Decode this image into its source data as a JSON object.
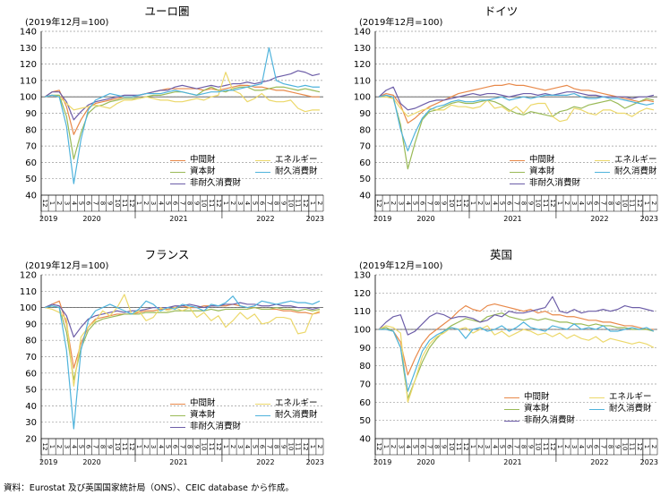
{
  "footer": {
    "source": "資料：Eurostat 及び英国国家統計局（ONS）、CEIC database から作成。"
  },
  "series_names": [
    "中間財",
    "資本財",
    "非耐久消費財",
    "エネルギー",
    "耐久消費財"
  ],
  "series_colors": {
    "中間財": "#e8894a",
    "資本財": "#9aba57",
    "非耐久消費財": "#6d5ea8",
    "エネルギー": "#ecd86a",
    "耐久消費財": "#4fb3dc"
  },
  "x_ticks": [
    "12",
    "1",
    "2",
    "3",
    "4",
    "5",
    "6",
    "7",
    "8",
    "9",
    "10",
    "11",
    "12",
    "1",
    "2",
    "3",
    "4",
    "5",
    "6",
    "7",
    "8",
    "9",
    "10",
    "11",
    "12",
    "1",
    "2",
    "3",
    "4",
    "5",
    "6",
    "7",
    "8",
    "9",
    "10",
    "11",
    "12",
    "1",
    "2"
  ],
  "year_labels": [
    {
      "label": "2019",
      "index": 0
    },
    {
      "label": "2020",
      "index": 6.5
    },
    {
      "label": "2021",
      "index": 18.5
    },
    {
      "label": "2022",
      "index": 30.5
    },
    {
      "label": "2023",
      "index": 37.5
    }
  ],
  "chart_data": [
    {
      "type": "line",
      "title": "ユーロ圏",
      "unit_label": "(2019年12月=100)",
      "ylim": [
        40,
        140
      ],
      "yticks": [
        40,
        50,
        60,
        70,
        80,
        90,
        100,
        110,
        120,
        130,
        140
      ],
      "x": [
        "2019-12",
        "2020-01",
        "2020-02",
        "2020-03",
        "2020-04",
        "2020-05",
        "2020-06",
        "2020-07",
        "2020-08",
        "2020-09",
        "2020-10",
        "2020-11",
        "2020-12",
        "2021-01",
        "2021-02",
        "2021-03",
        "2021-04",
        "2021-05",
        "2021-06",
        "2021-07",
        "2021-08",
        "2021-09",
        "2021-10",
        "2021-11",
        "2021-12",
        "2022-01",
        "2022-02",
        "2022-03",
        "2022-04",
        "2022-05",
        "2022-06",
        "2022-07",
        "2022-08",
        "2022-09",
        "2022-10",
        "2022-11",
        "2022-12",
        "2023-01",
        "2023-02"
      ],
      "grid": true,
      "series": [
        {
          "name": "中間財",
          "values": [
            100,
            103,
            104,
            94,
            77,
            86,
            93,
            96,
            97,
            98,
            99,
            100,
            100,
            101,
            102,
            103,
            104,
            105,
            105,
            105,
            105,
            105,
            104,
            105,
            104,
            105,
            106,
            107,
            107,
            106,
            106,
            105,
            104,
            104,
            103,
            102,
            101,
            100,
            100
          ]
        },
        {
          "name": "資本財",
          "values": [
            100,
            101,
            101,
            88,
            62,
            78,
            90,
            94,
            95,
            97,
            98,
            99,
            99,
            99,
            100,
            101,
            101,
            102,
            103,
            103,
            102,
            101,
            104,
            106,
            104,
            103,
            105,
            106,
            106,
            104,
            104,
            105,
            106,
            106,
            105,
            104,
            105,
            104,
            103
          ]
        },
        {
          "name": "非耐久消費財",
          "values": [
            100,
            103,
            103,
            97,
            86,
            91,
            95,
            97,
            98,
            99,
            100,
            101,
            101,
            101,
            102,
            103,
            104,
            104,
            106,
            107,
            106,
            105,
            106,
            107,
            106,
            107,
            108,
            108,
            109,
            108,
            109,
            110,
            112,
            113,
            114,
            116,
            115,
            113,
            114
          ]
        },
        {
          "name": "エネルギー",
          "values": [
            100,
            101,
            100,
            96,
            92,
            93,
            94,
            95,
            94,
            93,
            96,
            98,
            98,
            99,
            100,
            99,
            98,
            98,
            97,
            97,
            98,
            99,
            98,
            100,
            101,
            115,
            104,
            102,
            97,
            99,
            102,
            98,
            97,
            97,
            98,
            93,
            91,
            92,
            92
          ]
        },
        {
          "name": "耐久消費財",
          "values": [
            100,
            101,
            100,
            82,
            47,
            74,
            92,
            98,
            100,
            102,
            101,
            100,
            100,
            101,
            102,
            102,
            102,
            103,
            104,
            103,
            102,
            101,
            102,
            103,
            103,
            104,
            104,
            105,
            106,
            107,
            108,
            130,
            110,
            108,
            107,
            106,
            107,
            106,
            106
          ]
        }
      ]
    },
    {
      "type": "line",
      "title": "ドイツ",
      "unit_label": "(2019年12月=100)",
      "ylim": [
        40,
        140
      ],
      "yticks": [
        40,
        50,
        60,
        70,
        80,
        90,
        100,
        110,
        120,
        130,
        140
      ],
      "x": [
        "2019-12",
        "2020-01",
        "2020-02",
        "2020-03",
        "2020-04",
        "2020-05",
        "2020-06",
        "2020-07",
        "2020-08",
        "2020-09",
        "2020-10",
        "2020-11",
        "2020-12",
        "2021-01",
        "2021-02",
        "2021-03",
        "2021-04",
        "2021-05",
        "2021-06",
        "2021-07",
        "2021-08",
        "2021-09",
        "2021-10",
        "2021-11",
        "2021-12",
        "2022-01",
        "2022-02",
        "2022-03",
        "2022-04",
        "2022-05",
        "2022-06",
        "2022-07",
        "2022-08",
        "2022-09",
        "2022-10",
        "2022-11",
        "2022-12",
        "2023-01",
        "2023-02"
      ],
      "grid": true,
      "series": [
        {
          "name": "中間財",
          "values": [
            100,
            102,
            101,
            95,
            84,
            87,
            91,
            94,
            96,
            98,
            100,
            102,
            103,
            104,
            105,
            106,
            107,
            107,
            108,
            107,
            107,
            106,
            105,
            104,
            105,
            106,
            107,
            105,
            104,
            104,
            103,
            102,
            101,
            100,
            99,
            98,
            97,
            98,
            97
          ]
        },
        {
          "name": "資本財",
          "values": [
            100,
            100,
            99,
            83,
            56,
            72,
            86,
            91,
            92,
            94,
            96,
            97,
            96,
            96,
            97,
            98,
            97,
            95,
            92,
            90,
            89,
            91,
            90,
            89,
            88,
            91,
            92,
            94,
            93,
            95,
            96,
            97,
            98,
            96,
            93,
            95,
            97,
            99,
            98
          ]
        },
        {
          "name": "非耐久消費財",
          "values": [
            100,
            104,
            106,
            96,
            92,
            93,
            95,
            97,
            98,
            98,
            99,
            100,
            101,
            102,
            101,
            102,
            102,
            101,
            100,
            101,
            102,
            102,
            101,
            102,
            101,
            102,
            103,
            103,
            102,
            101,
            101,
            100,
            100,
            100,
            100,
            99,
            100,
            100,
            101
          ]
        },
        {
          "name": "エネルギー",
          "values": [
            100,
            100,
            99,
            93,
            88,
            90,
            92,
            93,
            92,
            92,
            95,
            94,
            94,
            93,
            94,
            98,
            93,
            94,
            91,
            94,
            90,
            95,
            96,
            96,
            88,
            85,
            86,
            93,
            92,
            90,
            89,
            92,
            92,
            90,
            90,
            88,
            91,
            93,
            92
          ]
        },
        {
          "name": "耐久消費財",
          "values": [
            100,
            101,
            100,
            80,
            67,
            78,
            87,
            92,
            94,
            95,
            97,
            98,
            97,
            97,
            98,
            98,
            99,
            100,
            98,
            99,
            100,
            99,
            100,
            101,
            101,
            101,
            101,
            102,
            100,
            99,
            99,
            100,
            99,
            99,
            98,
            97,
            96,
            95,
            96
          ]
        }
      ]
    },
    {
      "type": "line",
      "title": "フランス",
      "unit_label": "(2019年12月=100)",
      "ylim": [
        20,
        120
      ],
      "yticks": [
        20,
        30,
        40,
        50,
        60,
        70,
        80,
        90,
        100,
        110,
        120
      ],
      "x": [
        "2019-12",
        "2020-01",
        "2020-02",
        "2020-03",
        "2020-04",
        "2020-05",
        "2020-06",
        "2020-07",
        "2020-08",
        "2020-09",
        "2020-10",
        "2020-11",
        "2020-12",
        "2021-01",
        "2021-02",
        "2021-03",
        "2021-04",
        "2021-05",
        "2021-06",
        "2021-07",
        "2021-08",
        "2021-09",
        "2021-10",
        "2021-11",
        "2021-12",
        "2022-01",
        "2022-02",
        "2022-03",
        "2022-04",
        "2022-05",
        "2022-06",
        "2022-07",
        "2022-08",
        "2022-09",
        "2022-10",
        "2022-11",
        "2022-12",
        "2023-01",
        "2023-02"
      ],
      "grid": true,
      "series": [
        {
          "name": "中間財",
          "values": [
            100,
            102,
            104,
            90,
            63,
            78,
            88,
            93,
            94,
            95,
            96,
            96,
            96,
            97,
            98,
            98,
            99,
            99,
            100,
            101,
            100,
            100,
            101,
            101,
            101,
            101,
            102,
            101,
            100,
            100,
            99,
            99,
            99,
            98,
            98,
            97,
            97,
            96,
            97
          ]
        },
        {
          "name": "資本財",
          "values": [
            100,
            101,
            100,
            85,
            56,
            75,
            86,
            91,
            93,
            94,
            95,
            96,
            96,
            96,
            97,
            97,
            97,
            97,
            98,
            98,
            98,
            98,
            98,
            99,
            98,
            99,
            99,
            99,
            99,
            100,
            99,
            99,
            100,
            99,
            99,
            98,
            99,
            98,
            99
          ]
        },
        {
          "name": "非耐久消費財",
          "values": [
            100,
            102,
            101,
            95,
            82,
            88,
            93,
            95,
            96,
            97,
            98,
            97,
            98,
            98,
            99,
            100,
            100,
            100,
            101,
            101,
            102,
            101,
            100,
            101,
            101,
            102,
            102,
            103,
            102,
            102,
            101,
            101,
            102,
            101,
            101,
            100,
            100,
            99,
            100
          ]
        },
        {
          "name": "エネルギー",
          "values": [
            100,
            99,
            97,
            93,
            52,
            82,
            88,
            92,
            98,
            95,
            100,
            108,
            96,
            98,
            92,
            94,
            100,
            98,
            100,
            98,
            100,
            94,
            97,
            92,
            95,
            88,
            92,
            97,
            93,
            96,
            90,
            91,
            94,
            94,
            93,
            84,
            85,
            96,
            98
          ]
        },
        {
          "name": "耐久消費財",
          "values": [
            100,
            101,
            100,
            74,
            26,
            74,
            92,
            98,
            100,
            102,
            100,
            98,
            96,
            99,
            104,
            102,
            98,
            100,
            99,
            102,
            101,
            100,
            98,
            102,
            101,
            103,
            107,
            101,
            100,
            101,
            104,
            103,
            102,
            103,
            104,
            103,
            103,
            102,
            104
          ]
        }
      ]
    },
    {
      "type": "line",
      "title": "英国",
      "unit_label": "(2019年12月=100)",
      "ylim": [
        40,
        130
      ],
      "yticks": [
        40,
        50,
        60,
        70,
        80,
        90,
        100,
        110,
        120,
        130
      ],
      "x": [
        "2019-12",
        "2020-01",
        "2020-02",
        "2020-03",
        "2020-04",
        "2020-05",
        "2020-06",
        "2020-07",
        "2020-08",
        "2020-09",
        "2020-10",
        "2020-11",
        "2020-12",
        "2021-01",
        "2021-02",
        "2021-03",
        "2021-04",
        "2021-05",
        "2021-06",
        "2021-07",
        "2021-08",
        "2021-09",
        "2021-10",
        "2021-11",
        "2021-12",
        "2022-01",
        "2022-02",
        "2022-03",
        "2022-04",
        "2022-05",
        "2022-06",
        "2022-07",
        "2022-08",
        "2022-09",
        "2022-10",
        "2022-11",
        "2022-12",
        "2023-01",
        "2023-02"
      ],
      "grid": true,
      "series": [
        {
          "name": "中間財",
          "values": [
            100,
            100,
            99,
            93,
            75,
            84,
            92,
            97,
            100,
            103,
            106,
            110,
            113,
            111,
            110,
            113,
            114,
            113,
            112,
            111,
            110,
            111,
            109,
            110,
            108,
            108,
            107,
            107,
            106,
            105,
            105,
            104,
            104,
            103,
            102,
            102,
            101,
            100,
            100
          ]
        },
        {
          "name": "資本財",
          "values": [
            100,
            101,
            99,
            90,
            62,
            72,
            82,
            90,
            95,
            99,
            102,
            104,
            106,
            105,
            104,
            107,
            108,
            109,
            107,
            106,
            105,
            106,
            105,
            106,
            105,
            104,
            104,
            103,
            103,
            102,
            103,
            102,
            102,
            101,
            101,
            100,
            100,
            100,
            99
          ]
        },
        {
          "name": "非耐久消費財",
          "values": [
            100,
            104,
            107,
            108,
            97,
            99,
            103,
            107,
            109,
            108,
            106,
            107,
            107,
            106,
            104,
            105,
            108,
            107,
            110,
            109,
            109,
            110,
            111,
            112,
            118,
            110,
            109,
            111,
            109,
            110,
            110,
            111,
            110,
            111,
            113,
            112,
            112,
            111,
            110
          ]
        },
        {
          "name": "エネルギー",
          "values": [
            100,
            102,
            101,
            98,
            60,
            72,
            85,
            92,
            96,
            98,
            101,
            100,
            101,
            98,
            100,
            102,
            97,
            99,
            96,
            98,
            100,
            99,
            97,
            98,
            96,
            98,
            95,
            97,
            95,
            94,
            96,
            93,
            95,
            94,
            93,
            92,
            93,
            92,
            90
          ]
        },
        {
          "name": "耐久消費財",
          "values": [
            100,
            100,
            99,
            90,
            66,
            77,
            88,
            94,
            97,
            99,
            101,
            100,
            95,
            100,
            101,
            99,
            100,
            102,
            99,
            101,
            104,
            101,
            100,
            99,
            102,
            101,
            100,
            103,
            100,
            101,
            100,
            102,
            99,
            99,
            100,
            101,
            100,
            101,
            99
          ]
        }
      ]
    }
  ]
}
